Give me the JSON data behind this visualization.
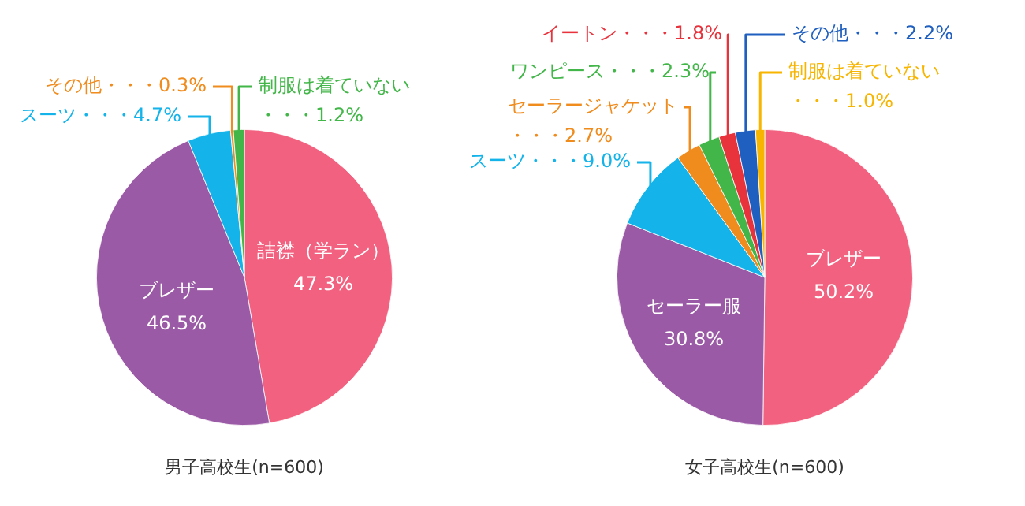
{
  "chart_data": [
    {
      "type": "pie",
      "title": "男子高校生(n=600)",
      "categories": [
        "詰襟（学ラン）",
        "ブレザー",
        "スーツ",
        "その他",
        "制服は着ていない"
      ],
      "values": [
        47.3,
        46.5,
        4.7,
        0.3,
        1.2
      ],
      "colors": [
        "#f2617f",
        "#9b5aa5",
        "#14b4ea",
        "#f08c1e",
        "#43b649"
      ],
      "value_labels": [
        "47.3%",
        "46.5%",
        "・・・4.7%",
        "・・・0.3%",
        "・・・1.2%"
      ]
    },
    {
      "type": "pie",
      "title": "女子高校生(n=600)",
      "categories": [
        "ブレザー",
        "セーラー服",
        "スーツ",
        "セーラージャケット",
        "ワンピース",
        "イートン",
        "その他",
        "制服は着ていない"
      ],
      "values": [
        50.2,
        30.8,
        9.0,
        2.7,
        2.3,
        1.8,
        2.2,
        1.0
      ],
      "colors": [
        "#f2617f",
        "#9b5aa5",
        "#14b4ea",
        "#f08c1e",
        "#43b649",
        "#e8323c",
        "#1f5fbf",
        "#f7b500"
      ],
      "value_labels": [
        "50.2%",
        "30.8%",
        "・・・9.0%",
        "・・・2.7%",
        "・・・2.3%",
        "・・・1.8%",
        "・・・2.2%",
        "・・・1.0%"
      ]
    }
  ]
}
